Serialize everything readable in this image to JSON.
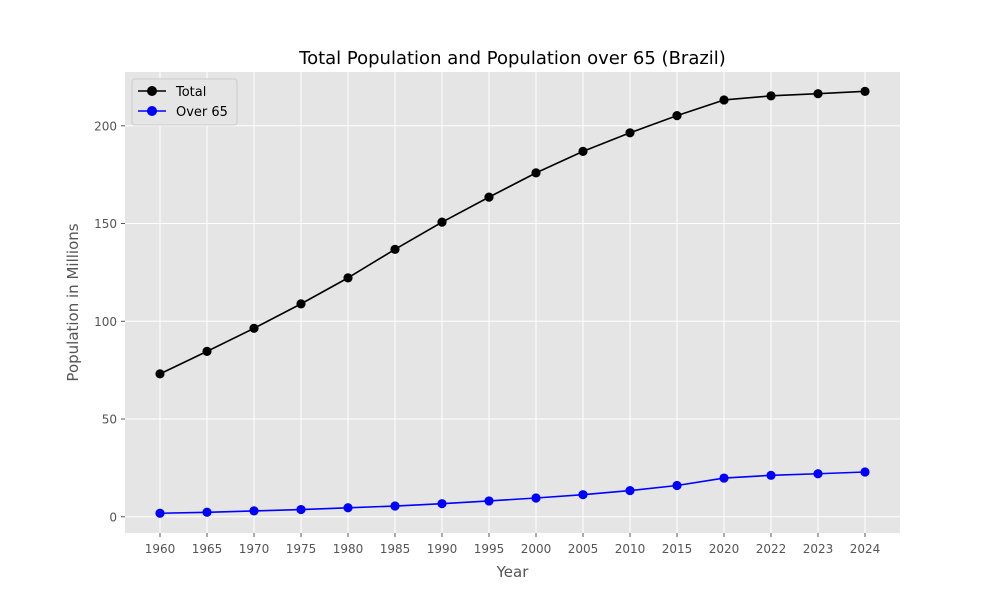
{
  "chart_data": {
    "type": "line",
    "title": "Total Population and Population over 65 (Brazil)",
    "xlabel": "Year",
    "ylabel": "Population in Millions",
    "categories": [
      "1960",
      "1965",
      "1970",
      "1975",
      "1980",
      "1985",
      "1990",
      "1995",
      "2000",
      "2005",
      "2010",
      "2015",
      "2020",
      "2022",
      "2023",
      "2024"
    ],
    "ylim": [
      -8.3,
      227.5
    ],
    "yticks": [
      "0",
      "50",
      "100",
      "150",
      "200"
    ],
    "grid": true,
    "legend_position": "top-left",
    "series": [
      {
        "name": "Total",
        "color": "#000000",
        "marker": "circle",
        "values": [
          73.1,
          84.6,
          96.4,
          108.9,
          122.2,
          136.8,
          150.7,
          163.5,
          175.9,
          186.9,
          196.4,
          205.2,
          213.2,
          215.3,
          216.4,
          217.6
        ]
      },
      {
        "name": "Over 65",
        "color": "#0000ff",
        "marker": "circle",
        "values": [
          1.8,
          2.3,
          3.0,
          3.7,
          4.6,
          5.5,
          6.7,
          8.1,
          9.6,
          11.3,
          13.4,
          16.0,
          19.8,
          21.2,
          22.0,
          22.9
        ]
      }
    ]
  }
}
